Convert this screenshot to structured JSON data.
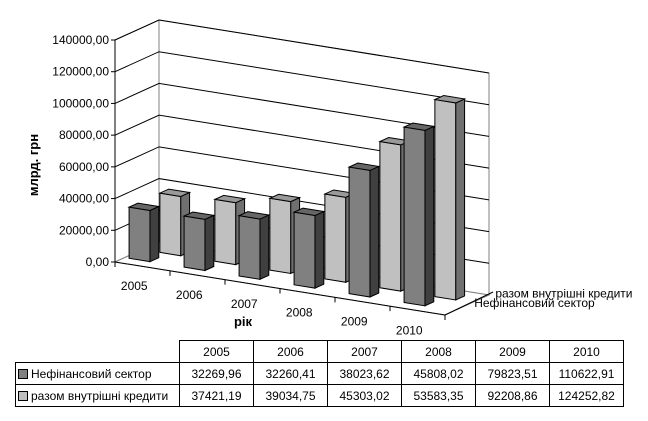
{
  "chart_data": {
    "type": "bar",
    "subtype": "3d-column",
    "categories": [
      "2005",
      "2006",
      "2007",
      "2008",
      "2009",
      "2010"
    ],
    "series": [
      {
        "name": "Нефінансовий сектор",
        "color": "#808080",
        "values": [
          32269.96,
          32260.41,
          38023.62,
          45808.02,
          79823.51,
          110622.91
        ],
        "labels": [
          "32269,96",
          "32260,41",
          "38023,62",
          "45808,02",
          "79823,51",
          "110622,91"
        ]
      },
      {
        "name": "разом внутрішні кредити",
        "color": "#c0c0c0",
        "values": [
          37421.19,
          39034.75,
          45303.02,
          53583.35,
          92208.86,
          124252.82
        ],
        "labels": [
          "37421,19",
          "39034,75",
          "45303,02",
          "53583,35",
          "92208,86",
          "124252,82"
        ]
      }
    ],
    "xlabel": "рік",
    "ylabel": "млрд. грн",
    "ylim": [
      0,
      140000
    ],
    "yticks": [
      "0,00",
      "20000,00",
      "40000,00",
      "60000,00",
      "80000,00",
      "100000,00",
      "120000,00",
      "140000,00"
    ],
    "grid": true,
    "data_table": true
  }
}
